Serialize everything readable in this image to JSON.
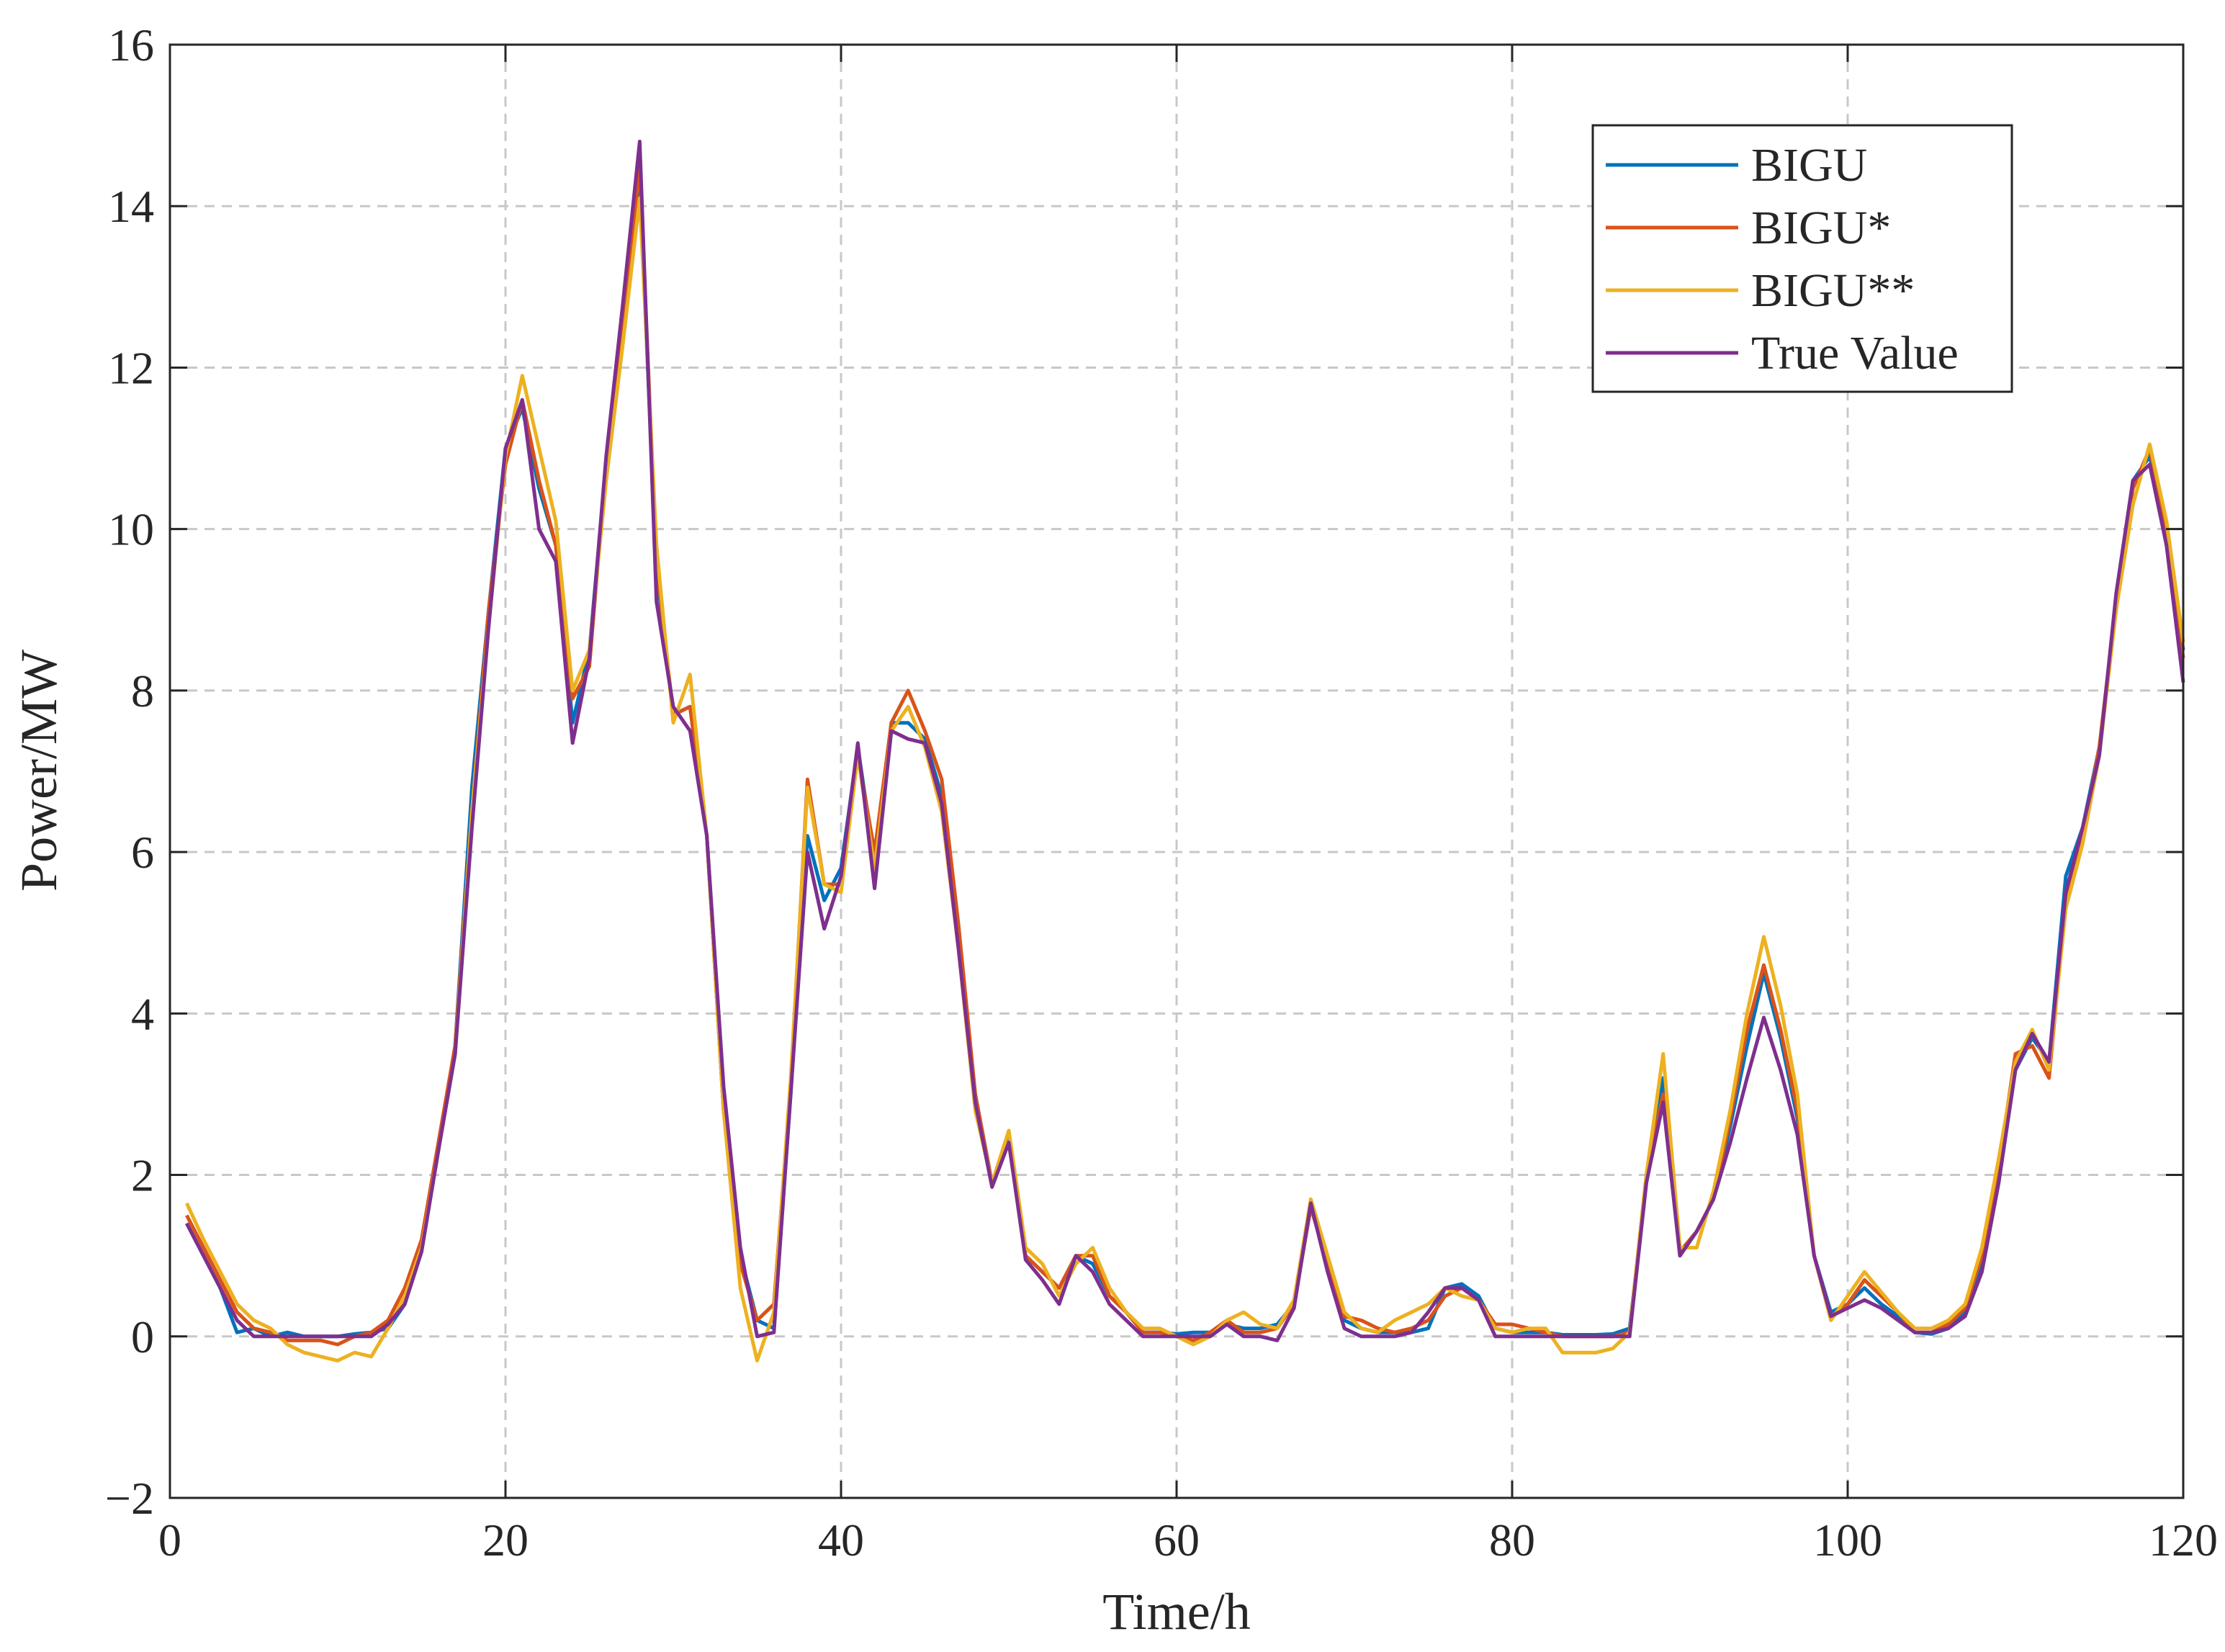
{
  "chart_data": {
    "type": "line",
    "title": "",
    "xlabel": "Time/h",
    "ylabel": "Power/MW",
    "xlim": [
      0,
      120
    ],
    "ylim": [
      -2,
      16
    ],
    "xticks": [
      0,
      20,
      40,
      60,
      80,
      100,
      120
    ],
    "yticks": [
      -2,
      0,
      2,
      4,
      6,
      8,
      10,
      12,
      14,
      16
    ],
    "ytick_labels": [
      "−2",
      "0",
      "2",
      "4",
      "6",
      "8",
      "10",
      "12",
      "14",
      "16"
    ],
    "grid": true,
    "legend_position": "top-right",
    "x": [
      1,
      2,
      3,
      4,
      5,
      6,
      7,
      8,
      9,
      10,
      11,
      12,
      13,
      14,
      15,
      16,
      17,
      18,
      19,
      20,
      21,
      22,
      23,
      24,
      25,
      26,
      27,
      28,
      29,
      30,
      31,
      32,
      33,
      34,
      35,
      36,
      37,
      38,
      39,
      40,
      41,
      42,
      43,
      44,
      45,
      46,
      47,
      48,
      49,
      50,
      51,
      52,
      53,
      54,
      55,
      56,
      57,
      58,
      59,
      60,
      61,
      62,
      63,
      64,
      65,
      66,
      67,
      68,
      69,
      70,
      71,
      72,
      73,
      74,
      75,
      76,
      77,
      78,
      79,
      80,
      81,
      82,
      83,
      84,
      85,
      86,
      87,
      88,
      89,
      90,
      91,
      92,
      93,
      94,
      95,
      96,
      97,
      98,
      99,
      100,
      101,
      102,
      103,
      104,
      105,
      106,
      107,
      108,
      109,
      110,
      111,
      112,
      113,
      114,
      115,
      116,
      117,
      118,
      119,
      120
    ],
    "series": [
      {
        "name": "BIGU",
        "color": "#0072BD",
        "values": [
          1.4,
          1.0,
          0.6,
          0.05,
          0.1,
          0.0,
          0.05,
          0.0,
          0.0,
          0.0,
          0.03,
          0.05,
          0.1,
          0.4,
          1.1,
          2.3,
          3.6,
          6.8,
          9.0,
          11.0,
          11.5,
          10.5,
          9.8,
          7.6,
          8.5,
          10.8,
          12.5,
          14.3,
          9.5,
          7.7,
          7.8,
          6.2,
          2.8,
          1.0,
          0.2,
          0.1,
          3.0,
          6.2,
          5.4,
          5.8,
          7.3,
          5.9,
          7.6,
          7.6,
          7.4,
          6.7,
          5.0,
          3.0,
          1.9,
          2.5,
          1.0,
          0.8,
          0.6,
          1.0,
          0.9,
          0.5,
          0.3,
          0.05,
          0.05,
          0.03,
          0.05,
          0.05,
          0.15,
          0.1,
          0.1,
          0.15,
          0.4,
          1.6,
          0.9,
          0.2,
          0.1,
          0.05,
          0.05,
          0.05,
          0.1,
          0.6,
          0.65,
          0.5,
          0.1,
          0.05,
          0.05,
          0.05,
          0.02,
          0.02,
          0.02,
          0.03,
          0.1,
          1.9,
          3.2,
          1.0,
          1.3,
          1.7,
          2.6,
          3.6,
          4.5,
          3.7,
          2.7,
          1.0,
          0.3,
          0.4,
          0.6,
          0.4,
          0.25,
          0.05,
          0.03,
          0.1,
          0.3,
          0.9,
          2.0,
          3.3,
          3.7,
          3.4,
          5.7,
          6.3,
          7.3,
          9.0,
          10.6,
          10.9,
          10.0,
          8.5
        ]
      },
      {
        "name": "BIGU*",
        "color": "#D95319",
        "values": [
          1.5,
          1.1,
          0.7,
          0.3,
          0.1,
          0.05,
          -0.05,
          -0.05,
          -0.05,
          -0.1,
          0.0,
          0.05,
          0.2,
          0.6,
          1.2,
          2.4,
          3.6,
          6.5,
          9.0,
          10.8,
          11.6,
          10.6,
          9.8,
          7.9,
          8.3,
          10.8,
          12.5,
          14.5,
          9.6,
          7.7,
          7.8,
          6.2,
          2.8,
          0.9,
          0.2,
          0.4,
          3.1,
          6.9,
          5.6,
          5.6,
          7.2,
          6.0,
          7.6,
          8.0,
          7.5,
          6.9,
          5.1,
          3.0,
          1.9,
          2.4,
          1.0,
          0.8,
          0.6,
          1.0,
          1.0,
          0.5,
          0.3,
          0.05,
          0.05,
          0.0,
          -0.05,
          0.05,
          0.2,
          0.05,
          0.05,
          0.1,
          0.4,
          1.6,
          0.9,
          0.25,
          0.2,
          0.1,
          0.05,
          0.1,
          0.2,
          0.5,
          0.6,
          0.45,
          0.15,
          0.15,
          0.1,
          0.05,
          0.0,
          0.0,
          0.0,
          0.0,
          0.05,
          2.0,
          3.0,
          1.05,
          1.3,
          1.7,
          2.7,
          3.8,
          4.6,
          3.8,
          2.8,
          1.0,
          0.25,
          0.4,
          0.7,
          0.5,
          0.3,
          0.05,
          0.05,
          0.15,
          0.35,
          1.0,
          2.1,
          3.5,
          3.6,
          3.2,
          5.4,
          6.2,
          7.3,
          9.1,
          10.5,
          11.0,
          10.0,
          8.4
        ]
      },
      {
        "name": "BIGU**",
        "color": "#EDB120",
        "values": [
          1.65,
          1.2,
          0.8,
          0.4,
          0.2,
          0.1,
          -0.1,
          -0.2,
          -0.25,
          -0.3,
          -0.2,
          -0.25,
          0.1,
          0.5,
          1.1,
          2.3,
          3.5,
          6.5,
          8.8,
          10.9,
          11.9,
          11.0,
          10.1,
          8.0,
          8.5,
          10.6,
          12.3,
          14.1,
          9.8,
          7.6,
          8.2,
          6.2,
          2.8,
          0.6,
          -0.3,
          0.3,
          3.2,
          6.8,
          5.6,
          5.5,
          7.2,
          5.8,
          7.5,
          7.8,
          7.3,
          6.5,
          4.8,
          2.8,
          1.9,
          2.55,
          1.1,
          0.9,
          0.5,
          0.9,
          1.1,
          0.6,
          0.3,
          0.1,
          0.1,
          0.0,
          -0.1,
          0.0,
          0.2,
          0.3,
          0.15,
          0.1,
          0.45,
          1.7,
          1.0,
          0.3,
          0.1,
          0.05,
          0.2,
          0.3,
          0.4,
          0.6,
          0.5,
          0.45,
          0.1,
          0.05,
          0.1,
          0.1,
          -0.2,
          -0.2,
          -0.2,
          -0.15,
          0.05,
          2.0,
          3.5,
          1.1,
          1.1,
          1.8,
          2.8,
          4.0,
          4.95,
          4.1,
          3.0,
          1.0,
          0.2,
          0.5,
          0.8,
          0.55,
          0.3,
          0.1,
          0.1,
          0.2,
          0.4,
          1.1,
          2.2,
          3.4,
          3.8,
          3.3,
          5.3,
          6.1,
          7.2,
          9.0,
          10.3,
          11.05,
          10.1,
          8.6
        ]
      },
      {
        "name": "True Value",
        "color": "#7E2F8E",
        "values": [
          1.4,
          1.0,
          0.6,
          0.2,
          0.0,
          0.0,
          0.0,
          0.0,
          0.0,
          0.0,
          0.0,
          0.0,
          0.15,
          0.4,
          1.05,
          2.3,
          3.5,
          6.3,
          8.8,
          11.0,
          11.6,
          10.0,
          9.6,
          7.35,
          8.4,
          10.9,
          12.8,
          14.8,
          9.1,
          7.8,
          7.5,
          6.2,
          3.1,
          1.1,
          0.0,
          0.05,
          3.0,
          6.0,
          5.05,
          5.7,
          7.35,
          5.55,
          7.5,
          7.4,
          7.35,
          6.6,
          4.8,
          2.9,
          1.85,
          2.4,
          0.95,
          0.7,
          0.4,
          1.0,
          0.8,
          0.4,
          0.2,
          0.0,
          0.0,
          0.0,
          0.0,
          0.0,
          0.15,
          0.0,
          0.0,
          -0.05,
          0.35,
          1.65,
          0.8,
          0.1,
          0.0,
          0.0,
          0.0,
          0.05,
          0.3,
          0.6,
          0.6,
          0.45,
          0.0,
          0.0,
          0.0,
          0.0,
          0.0,
          0.0,
          0.0,
          0.0,
          0.0,
          1.9,
          2.9,
          1.0,
          1.3,
          1.7,
          2.4,
          3.2,
          3.95,
          3.3,
          2.5,
          1.0,
          0.25,
          0.35,
          0.45,
          0.35,
          0.2,
          0.05,
          0.05,
          0.1,
          0.25,
          0.8,
          1.9,
          3.3,
          3.75,
          3.4,
          5.5,
          6.3,
          7.2,
          9.2,
          10.6,
          10.8,
          9.8,
          8.1
        ]
      }
    ]
  }
}
